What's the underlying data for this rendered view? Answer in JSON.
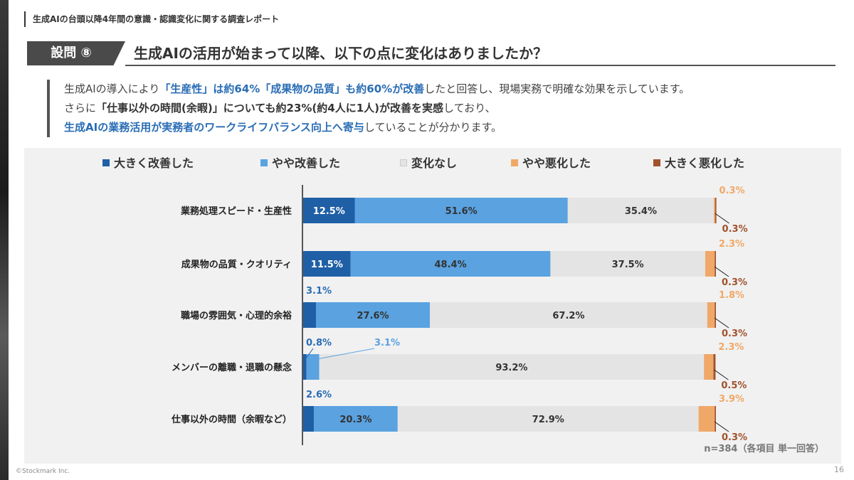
{
  "header": {
    "report_title": "生成AIの台頭以降4年間の意識・認識変化に関する調査レポート"
  },
  "question": {
    "badge": "設問 ⑧",
    "text": "生成AIの活用が始まって以降、以下の点に変化はありましたか？"
  },
  "summary": {
    "line1": [
      {
        "t": "生成AIの導入により",
        "s": ""
      },
      {
        "t": "「生産性」は約64%「成果物の品質」も約60%が改善",
        "s": "hl"
      },
      {
        "t": "したと回答し、現場実務で明確な効果を示しています。",
        "s": ""
      }
    ],
    "line2": [
      {
        "t": "さらに",
        "s": ""
      },
      {
        "t": "「仕事以外の時間(余暇)」についても約23%(約4人に1人)が改善を実感",
        "s": "b"
      },
      {
        "t": "しており、",
        "s": ""
      }
    ],
    "line3": [
      {
        "t": "生成AIの業務活用が実務者のワークライフバランス向上へ寄与",
        "s": "hl"
      },
      {
        "t": "していることが分かります。",
        "s": ""
      }
    ]
  },
  "chart_note": "n=384（各項目 単一回答）",
  "footer": {
    "copyright": "©Stockmark Inc.",
    "page": "16"
  },
  "colors": {
    "greatly_improved": "#1f5fa6",
    "somewhat_improved": "#5aa2e0",
    "no_change": "#e4e4e4",
    "somewhat_worse": "#f0a868",
    "greatly_worse": "#a0522d"
  },
  "chart_data": {
    "type": "bar",
    "orientation": "horizontal",
    "stacked": true,
    "xlim": [
      0,
      100
    ],
    "legend_position": "top",
    "categories": [
      "業務処理スピード・生産性",
      "成果物の品質・クオリティ",
      "職場の雰囲気・心理的余裕",
      "メンバーの離職・退職の懸念",
      "仕事以外の時間（余暇など）"
    ],
    "series": [
      {
        "name": "大きく改善した",
        "values": [
          12.5,
          11.5,
          3.1,
          0.8,
          2.6
        ]
      },
      {
        "name": "やや改善した",
        "values": [
          51.6,
          48.4,
          27.6,
          3.1,
          20.3
        ]
      },
      {
        "name": "変化なし",
        "values": [
          35.4,
          37.5,
          67.2,
          93.2,
          72.9
        ]
      },
      {
        "name": "やや悪化した",
        "values": [
          0.3,
          2.3,
          1.8,
          2.3,
          3.9
        ]
      },
      {
        "name": "大きく悪化した",
        "values": [
          0.3,
          0.3,
          0.3,
          0.5,
          0.3
        ]
      }
    ]
  }
}
